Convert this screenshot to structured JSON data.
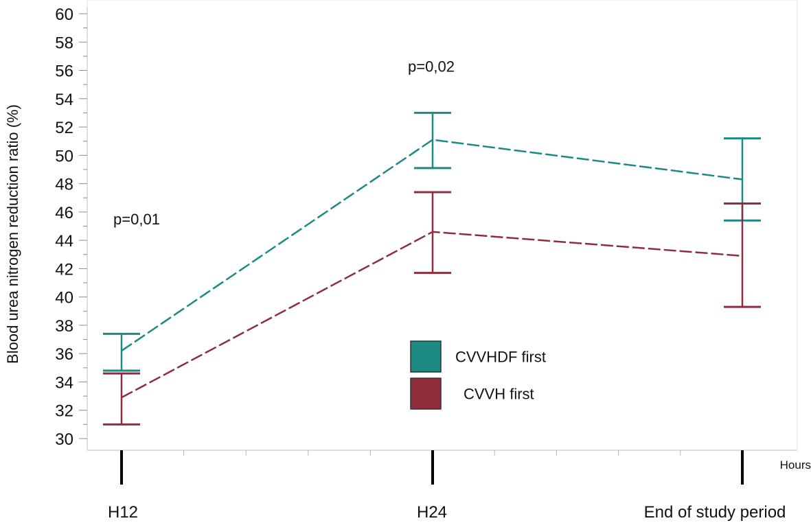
{
  "chart_data": {
    "type": "line",
    "categories": [
      "H12",
      "H24",
      "End of study period"
    ],
    "ylabel": "Blood urea nitrogen reduction ratio (%)",
    "x_unit": "Hours",
    "ylim": [
      30,
      60
    ],
    "ytick_step": 2,
    "grid": false,
    "legend_position": "center",
    "series": [
      {
        "name": "CVVHDF first",
        "color": "#1a8a82",
        "values": [
          36.2,
          51.1,
          48.3
        ],
        "error_low": [
          34.8,
          49.1,
          45.4
        ],
        "error_high": [
          37.4,
          53.0,
          51.2
        ]
      },
      {
        "name": "CVVH first",
        "color": "#8f2d3c",
        "values": [
          32.9,
          44.6,
          42.9
        ],
        "error_low": [
          31.0,
          41.7,
          39.3
        ],
        "error_high": [
          34.6,
          47.4,
          46.6
        ]
      }
    ],
    "annotations": [
      {
        "text": "p=0,01",
        "category": 0,
        "y": 45.5
      },
      {
        "text": "p=0,02",
        "category": 1,
        "y": 56.3
      }
    ]
  }
}
